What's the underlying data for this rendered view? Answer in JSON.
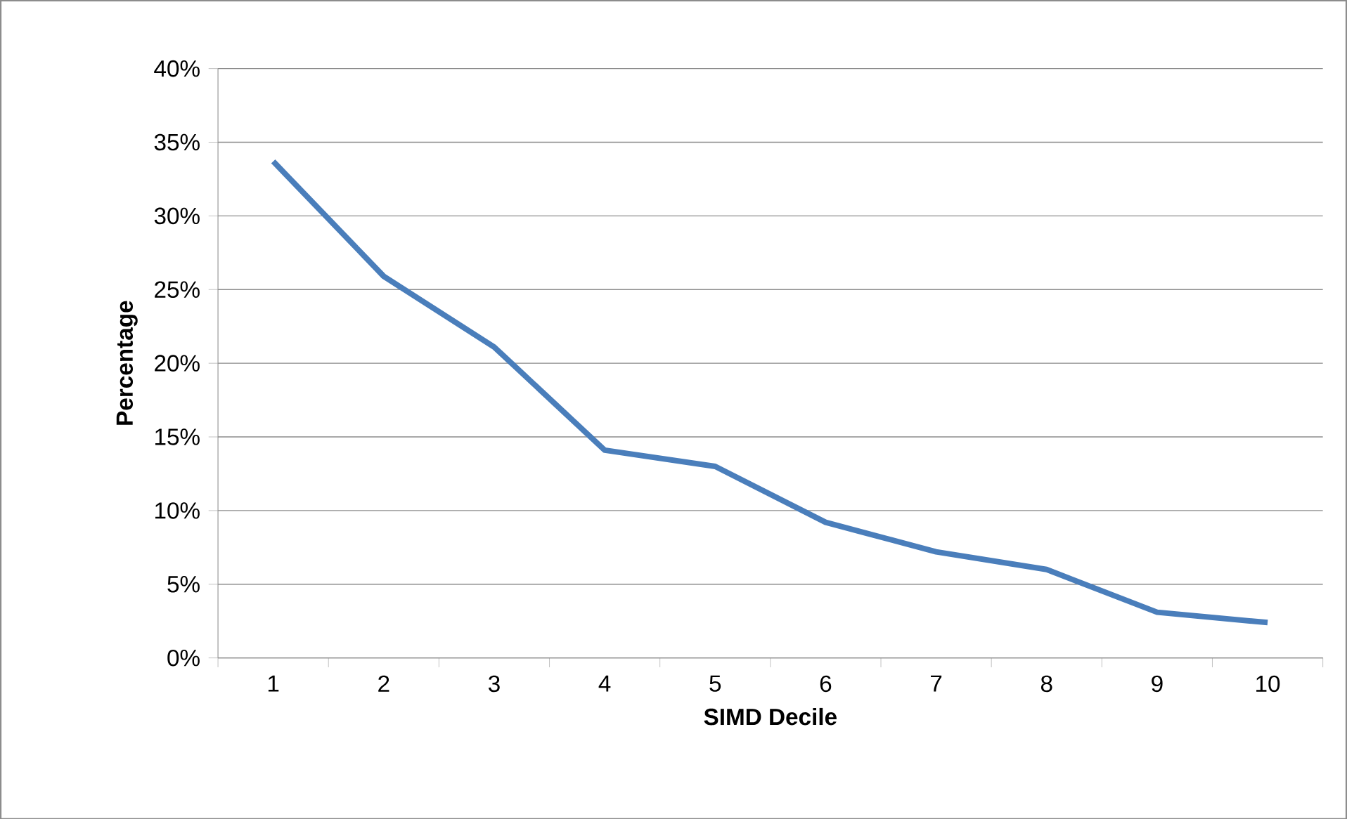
{
  "chart_data": {
    "type": "line",
    "xlabel": "SIMD Decile",
    "ylabel": "Percentage",
    "categories": [
      "1",
      "2",
      "3",
      "4",
      "5",
      "6",
      "7",
      "8",
      "9",
      "10"
    ],
    "series": [
      {
        "color": "#4a7ebb",
        "values": [
          33.7,
          25.9,
          21.1,
          14.1,
          13.0,
          9.2,
          7.2,
          6.0,
          3.1,
          2.4
        ]
      }
    ],
    "ylim": [
      0,
      40
    ],
    "yticks": [
      {
        "value": 0,
        "label": "0%"
      },
      {
        "value": 5,
        "label": "5%"
      },
      {
        "value": 10,
        "label": "10%"
      },
      {
        "value": 15,
        "label": "15%"
      },
      {
        "value": 20,
        "label": "20%"
      },
      {
        "value": 25,
        "label": "25%"
      },
      {
        "value": 30,
        "label": "30%"
      },
      {
        "value": 35,
        "label": "35%"
      },
      {
        "value": 40,
        "label": "40%"
      }
    ],
    "grid": "y"
  }
}
